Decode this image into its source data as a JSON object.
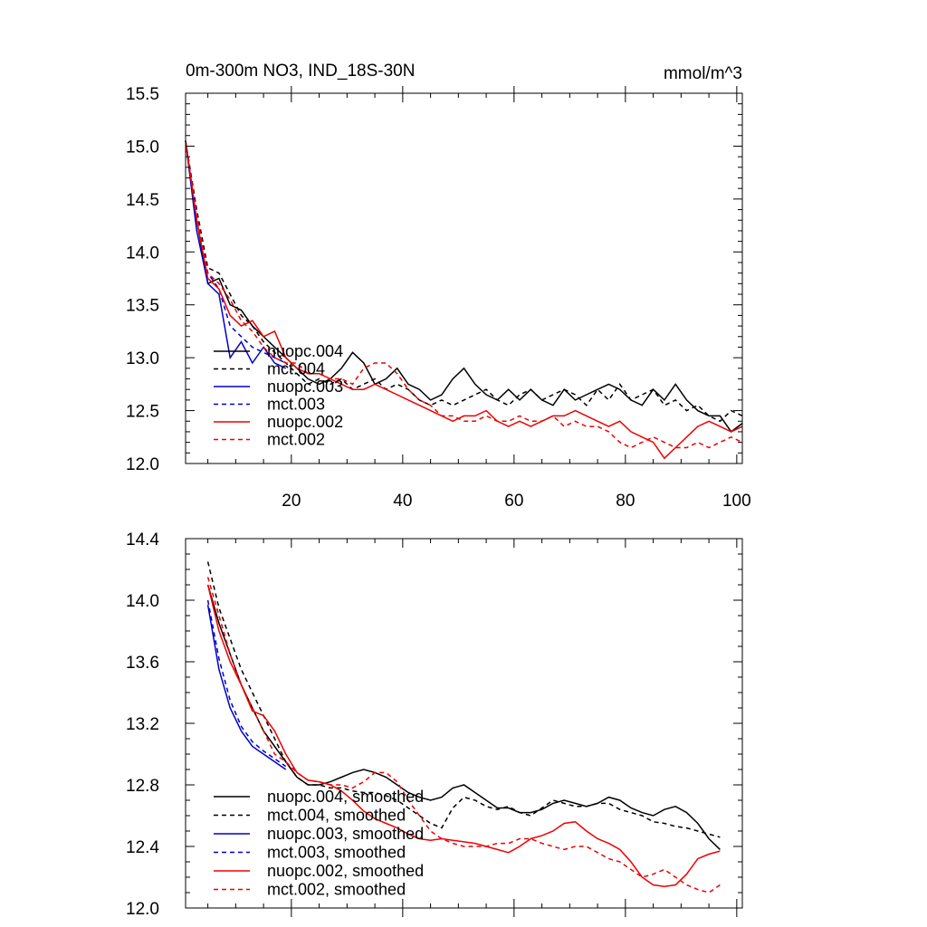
{
  "figure": {
    "title_left": "0m-300m NO3, IND_18S-30N",
    "title_right": "mmol/m^3"
  },
  "chart_data": [
    {
      "type": "line",
      "xlim": [
        1,
        101
      ],
      "ylim": [
        12.0,
        15.5
      ],
      "x_ticks": [
        20,
        40,
        60,
        80,
        100
      ],
      "x_tick_labels": [
        "20",
        "40",
        "60",
        "80",
        "100"
      ],
      "y_ticks": [
        12.0,
        12.5,
        13.0,
        13.5,
        14.0,
        14.5,
        15.0,
        15.5
      ],
      "y_tick_labels": [
        "12.0",
        "12.5",
        "13.0",
        "13.5",
        "14.0",
        "14.5",
        "15.0",
        "15.5"
      ],
      "legend_position": "lower-left",
      "series": [
        {
          "name": "nuopc.004",
          "color": "#000000",
          "dash": "solid",
          "x": [
            1,
            3,
            5,
            7,
            9,
            11,
            13,
            15,
            17,
            19,
            21,
            23,
            25,
            27,
            29,
            31,
            33,
            35,
            37,
            39,
            41,
            43,
            45,
            47,
            49,
            51,
            53,
            55,
            57,
            59,
            61,
            63,
            65,
            67,
            69,
            71,
            73,
            75,
            77,
            79,
            81,
            83,
            85,
            87,
            89,
            91,
            93,
            95,
            97,
            99,
            101
          ],
          "y": [
            15.05,
            14.3,
            13.7,
            13.75,
            13.5,
            13.45,
            13.3,
            13.2,
            13.1,
            13.0,
            12.9,
            12.8,
            12.75,
            12.8,
            12.9,
            13.05,
            12.95,
            12.75,
            12.8,
            12.9,
            12.75,
            12.7,
            12.6,
            12.65,
            12.8,
            12.9,
            12.75,
            12.65,
            12.6,
            12.7,
            12.6,
            12.7,
            12.6,
            12.55,
            12.7,
            12.6,
            12.65,
            12.7,
            12.75,
            12.7,
            12.6,
            12.55,
            12.7,
            12.6,
            12.75,
            12.6,
            12.5,
            12.45,
            12.45,
            12.3,
            12.38
          ]
        },
        {
          "name": "mct.004",
          "color": "#000000",
          "dash": "dashed",
          "x": [
            1,
            3,
            5,
            7,
            9,
            11,
            13,
            15,
            17,
            19,
            21,
            23,
            25,
            27,
            29,
            31,
            33,
            35,
            37,
            39,
            41,
            43,
            45,
            47,
            49,
            51,
            53,
            55,
            57,
            59,
            61,
            63,
            65,
            67,
            69,
            71,
            73,
            75,
            77,
            79,
            81,
            83,
            85,
            87,
            89,
            91,
            93,
            95,
            97,
            99,
            101
          ],
          "y": [
            15.05,
            14.4,
            13.85,
            13.8,
            13.6,
            13.4,
            13.3,
            13.15,
            13.05,
            12.95,
            12.85,
            12.75,
            12.8,
            12.75,
            12.8,
            12.7,
            12.75,
            12.8,
            12.7,
            12.75,
            12.7,
            12.6,
            12.55,
            12.6,
            12.55,
            12.6,
            12.65,
            12.7,
            12.6,
            12.55,
            12.65,
            12.7,
            12.6,
            12.65,
            12.7,
            12.65,
            12.55,
            12.7,
            12.6,
            12.75,
            12.6,
            12.65,
            12.7,
            12.55,
            12.6,
            12.5,
            12.55,
            12.45,
            12.4,
            12.5,
            12.45
          ]
        },
        {
          "name": "nuopc.003",
          "color": "#0000cc",
          "dash": "solid",
          "x": [
            1,
            3,
            5,
            7,
            9,
            11,
            13,
            15,
            17,
            19
          ],
          "y": [
            15.05,
            14.2,
            13.7,
            13.6,
            13.0,
            13.15,
            12.95,
            13.1,
            12.95,
            12.9
          ]
        },
        {
          "name": "mct.003",
          "color": "#0000cc",
          "dash": "dashed",
          "x": [
            1,
            3,
            5,
            7,
            9,
            11,
            13,
            15,
            17,
            19
          ],
          "y": [
            15.05,
            14.3,
            13.8,
            13.65,
            13.3,
            13.2,
            13.1,
            13.05,
            13.0,
            12.95
          ]
        },
        {
          "name": "nuopc.002",
          "color": "#ee0000",
          "dash": "solid",
          "x": [
            1,
            3,
            5,
            7,
            9,
            11,
            13,
            15,
            17,
            19,
            21,
            23,
            25,
            27,
            29,
            31,
            33,
            35,
            37,
            39,
            41,
            43,
            45,
            47,
            49,
            51,
            53,
            55,
            57,
            59,
            61,
            63,
            65,
            67,
            69,
            71,
            73,
            75,
            77,
            79,
            81,
            83,
            85,
            87,
            89,
            91,
            93,
            95,
            97,
            99,
            101
          ],
          "y": [
            15.05,
            14.3,
            13.75,
            13.65,
            13.4,
            13.3,
            13.35,
            13.2,
            13.25,
            13.0,
            12.9,
            12.85,
            12.85,
            12.8,
            12.75,
            12.7,
            12.7,
            12.75,
            12.7,
            12.65,
            12.6,
            12.55,
            12.5,
            12.45,
            12.4,
            12.45,
            12.45,
            12.5,
            12.4,
            12.35,
            12.4,
            12.35,
            12.4,
            12.45,
            12.45,
            12.5,
            12.45,
            12.4,
            12.35,
            12.4,
            12.3,
            12.25,
            12.2,
            12.05,
            12.15,
            12.25,
            12.35,
            12.4,
            12.35,
            12.3,
            12.35
          ]
        },
        {
          "name": "mct.002",
          "color": "#ee0000",
          "dash": "dashed",
          "x": [
            1,
            3,
            5,
            7,
            9,
            11,
            13,
            15,
            17,
            19,
            21,
            23,
            25,
            27,
            29,
            31,
            33,
            35,
            37,
            39,
            41,
            43,
            45,
            47,
            49,
            51,
            53,
            55,
            57,
            59,
            61,
            63,
            65,
            67,
            69,
            71,
            73,
            75,
            77,
            79,
            81,
            83,
            85,
            87,
            89,
            91,
            93,
            95,
            97,
            99,
            101
          ],
          "y": [
            15.05,
            14.35,
            13.8,
            13.7,
            13.55,
            13.35,
            13.25,
            13.1,
            13.0,
            12.95,
            12.95,
            12.85,
            12.85,
            12.8,
            12.8,
            12.75,
            12.9,
            12.95,
            12.95,
            12.85,
            12.7,
            12.6,
            12.55,
            12.45,
            12.45,
            12.4,
            12.4,
            12.45,
            12.4,
            12.4,
            12.45,
            12.4,
            12.4,
            12.45,
            12.35,
            12.4,
            12.35,
            12.35,
            12.3,
            12.2,
            12.15,
            12.2,
            12.25,
            12.2,
            12.15,
            12.15,
            12.2,
            12.15,
            12.2,
            12.25,
            12.2
          ]
        }
      ]
    },
    {
      "type": "line",
      "xlim": [
        1,
        101
      ],
      "ylim": [
        12.0,
        14.4
      ],
      "y_ticks": [
        12.0,
        12.4,
        12.8,
        13.2,
        13.6,
        14.0,
        14.4
      ],
      "y_tick_labels": [
        "12.0",
        "12.4",
        "12.8",
        "13.2",
        "13.6",
        "14.0",
        "14.4"
      ],
      "legend_position": "lower-left",
      "series": [
        {
          "name": "nuopc.004, smoothed",
          "color": "#000000",
          "dash": "solid",
          "x": [
            5,
            7,
            9,
            11,
            13,
            15,
            17,
            19,
            21,
            23,
            25,
            27,
            29,
            31,
            33,
            35,
            37,
            39,
            41,
            43,
            45,
            47,
            49,
            51,
            53,
            55,
            57,
            59,
            61,
            63,
            65,
            67,
            69,
            71,
            73,
            75,
            77,
            79,
            81,
            83,
            85,
            87,
            89,
            91,
            93,
            95,
            97
          ],
          "y": [
            14.1,
            13.85,
            13.65,
            13.45,
            13.3,
            13.15,
            13.05,
            12.95,
            12.85,
            12.8,
            12.8,
            12.82,
            12.85,
            12.88,
            12.9,
            12.88,
            12.85,
            12.8,
            12.75,
            12.72,
            12.7,
            12.72,
            12.78,
            12.8,
            12.75,
            12.7,
            12.65,
            12.65,
            12.62,
            12.62,
            12.64,
            12.68,
            12.7,
            12.68,
            12.66,
            12.68,
            12.72,
            12.7,
            12.65,
            12.62,
            12.6,
            12.64,
            12.66,
            12.62,
            12.55,
            12.45,
            12.38
          ]
        },
        {
          "name": "mct.004, smoothed",
          "color": "#000000",
          "dash": "dashed",
          "x": [
            5,
            7,
            9,
            11,
            13,
            15,
            17,
            19,
            21,
            23,
            25,
            27,
            29,
            31,
            33,
            35,
            37,
            39,
            41,
            43,
            45,
            47,
            49,
            51,
            53,
            55,
            57,
            59,
            61,
            63,
            65,
            67,
            69,
            71,
            73,
            75,
            77,
            79,
            81,
            83,
            85,
            87,
            89,
            91,
            93,
            95,
            97
          ],
          "y": [
            14.25,
            13.95,
            13.75,
            13.55,
            13.4,
            13.25,
            13.1,
            12.95,
            12.85,
            12.8,
            12.8,
            12.78,
            12.78,
            12.76,
            12.75,
            12.75,
            12.73,
            12.7,
            12.65,
            12.6,
            12.55,
            12.52,
            12.65,
            12.72,
            12.7,
            12.66,
            12.64,
            12.66,
            12.62,
            12.6,
            12.65,
            12.7,
            12.68,
            12.66,
            12.66,
            12.68,
            12.68,
            12.64,
            12.62,
            12.6,
            12.56,
            12.55,
            12.53,
            12.52,
            12.5,
            12.48,
            12.46
          ]
        },
        {
          "name": "nuopc.003, smoothed",
          "color": "#0000cc",
          "dash": "solid",
          "x": [
            5,
            7,
            9,
            11,
            13,
            15,
            17,
            19
          ],
          "y": [
            13.97,
            13.55,
            13.3,
            13.15,
            13.05,
            13.0,
            12.95,
            12.9
          ]
        },
        {
          "name": "mct.003, smoothed",
          "color": "#0000cc",
          "dash": "dashed",
          "x": [
            5,
            7,
            9,
            11,
            13,
            15,
            17,
            19
          ],
          "y": [
            14.0,
            13.62,
            13.35,
            13.18,
            13.08,
            13.02,
            12.97,
            12.92
          ]
        },
        {
          "name": "nuopc.002, smoothed",
          "color": "#ee0000",
          "dash": "solid",
          "x": [
            5,
            7,
            9,
            11,
            13,
            15,
            17,
            19,
            21,
            23,
            25,
            27,
            29,
            31,
            33,
            35,
            37,
            39,
            41,
            43,
            45,
            47,
            49,
            51,
            53,
            55,
            57,
            59,
            61,
            63,
            65,
            67,
            69,
            71,
            73,
            75,
            77,
            79,
            81,
            83,
            85,
            87,
            89,
            91,
            93,
            95,
            97
          ],
          "y": [
            14.1,
            13.8,
            13.6,
            13.45,
            13.28,
            13.25,
            13.15,
            13.0,
            12.88,
            12.83,
            12.82,
            12.8,
            12.76,
            12.7,
            12.63,
            12.58,
            12.55,
            12.52,
            12.48,
            12.45,
            12.44,
            12.45,
            12.44,
            12.43,
            12.42,
            12.4,
            12.38,
            12.36,
            12.4,
            12.45,
            12.47,
            12.5,
            12.55,
            12.56,
            12.5,
            12.45,
            12.42,
            12.38,
            12.3,
            12.2,
            12.15,
            12.14,
            12.15,
            12.22,
            12.32,
            12.35,
            12.37
          ]
        },
        {
          "name": "mct.002, smoothed",
          "color": "#ee0000",
          "dash": "dashed",
          "x": [
            5,
            7,
            9,
            11,
            13,
            15,
            17,
            19,
            21,
            23,
            25,
            27,
            29,
            31,
            33,
            35,
            37,
            39,
            41,
            43,
            45,
            47,
            49,
            51,
            53,
            55,
            57,
            59,
            61,
            63,
            65,
            67,
            69,
            71,
            73,
            75,
            77,
            79,
            81,
            83,
            85,
            87,
            89,
            91,
            93,
            95,
            97
          ],
          "y": [
            14.15,
            13.9,
            13.65,
            13.45,
            13.3,
            13.15,
            13.0,
            12.95,
            12.88,
            12.83,
            12.82,
            12.8,
            12.8,
            12.78,
            12.82,
            12.88,
            12.88,
            12.82,
            12.7,
            12.6,
            12.5,
            12.45,
            12.42,
            12.4,
            12.4,
            12.4,
            12.42,
            12.42,
            12.45,
            12.45,
            12.42,
            12.4,
            12.38,
            12.4,
            12.4,
            12.36,
            12.32,
            12.3,
            12.25,
            12.2,
            12.22,
            12.25,
            12.2,
            12.15,
            12.12,
            12.1,
            12.15
          ]
        }
      ]
    }
  ]
}
